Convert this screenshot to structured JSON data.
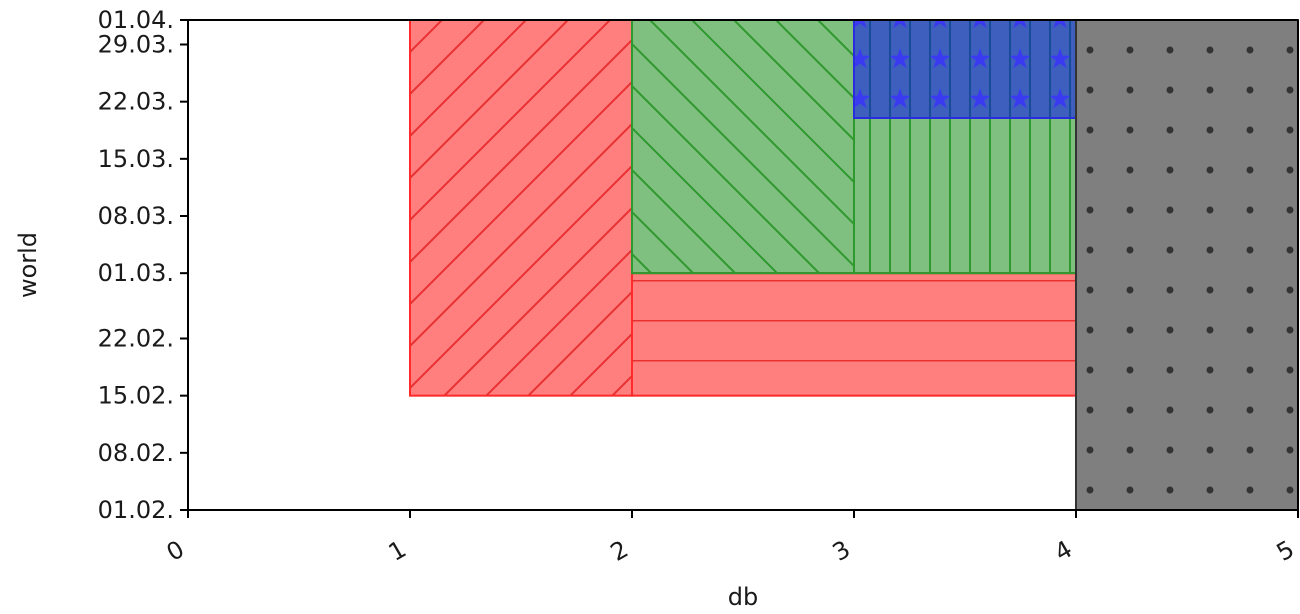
{
  "chart_data": {
    "type": "bar",
    "orientation": "horizontal-spans",
    "xlabel": "db",
    "ylabel": "world",
    "xlim": [
      0,
      5
    ],
    "ylim": [
      "2000-02-01",
      "2000-04-01"
    ],
    "x_ticks": [
      0,
      1,
      2,
      3,
      4,
      5
    ],
    "x_tick_labels": [
      "0",
      "1",
      "2",
      "3",
      "4",
      "5"
    ],
    "y_ticks": [
      "2000-02-01",
      "2000-02-08",
      "2000-02-15",
      "2000-02-22",
      "2000-03-01",
      "2000-03-08",
      "2000-03-15",
      "2000-03-22",
      "2000-03-29",
      "2000-04-01"
    ],
    "y_tick_labels": [
      "01.02.",
      "08.02.",
      "15.02.",
      "22.02.",
      "01.03.",
      "08.03.",
      "15.03.",
      "22.03.",
      "29.03.",
      "01.04."
    ],
    "grid": false,
    "bars": [
      {
        "x0": 1,
        "x1": 2,
        "y0": "2000-02-15",
        "y1": "2000-04-01",
        "color": "#ff0000",
        "hatch": "/"
      },
      {
        "x0": 2,
        "x1": 4,
        "y0": "2000-02-15",
        "y1": "2000-03-01",
        "color": "#ff0000",
        "hatch": "-"
      },
      {
        "x0": 2,
        "x1": 3,
        "y0": "2000-03-01",
        "y1": "2000-04-01",
        "color": "#008000",
        "hatch": "\\"
      },
      {
        "x0": 3,
        "x1": 4,
        "y0": "2000-03-01",
        "y1": "2000-04-01",
        "color": "#008000",
        "hatch": "|"
      },
      {
        "x0": 3,
        "x1": 4,
        "y0": "2000-03-20",
        "y1": "2000-04-01",
        "color": "#0000ff",
        "hatch": "*"
      },
      {
        "x0": 4,
        "x1": 5,
        "y0": "2000-02-01",
        "y1": "2000-04-01",
        "color": "#000000",
        "hatch": "."
      }
    ]
  }
}
